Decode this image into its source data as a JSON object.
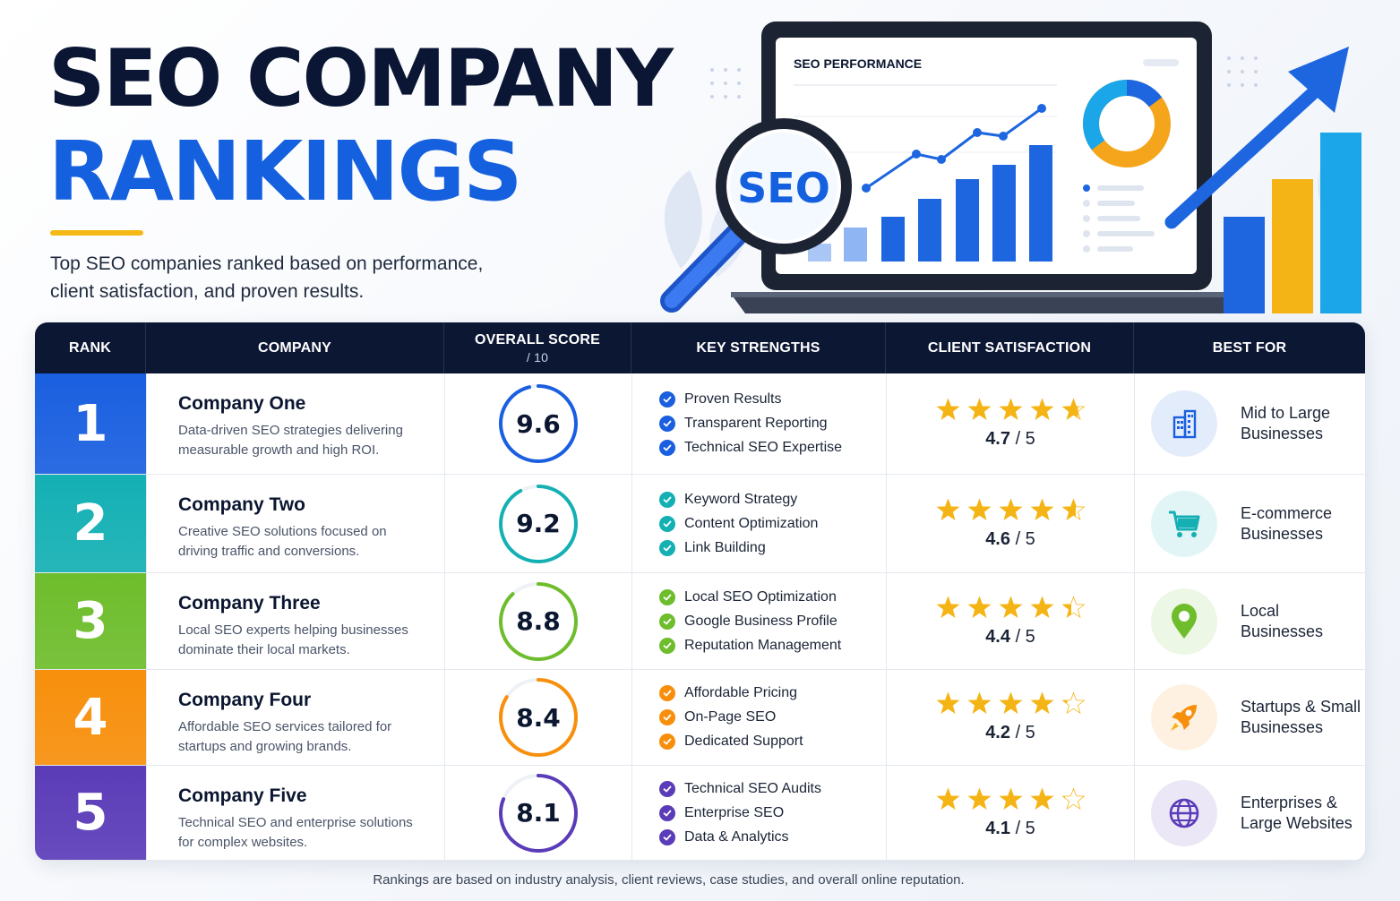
{
  "header": {
    "title_line1": "SEO COMPANY",
    "title_line2": "RANKINGS",
    "subtitle": "Top SEO companies ranked based on performance, client satisfaction, and proven results."
  },
  "illustration": {
    "laptop_heading": "SEO PERFORMANCE",
    "magnifier_text": "SEO"
  },
  "colors": {
    "navy": "#0c1734",
    "accent_blue": "#1460de",
    "gold": "#f5b915",
    "rank_colors": [
      "#1a5fe0",
      "#14b0b4",
      "#6ebd2c",
      "#f78f0c",
      "#5b3cb8"
    ]
  },
  "table": {
    "columns": {
      "rank": "RANK",
      "company": "COMPANY",
      "score": "OVERALL SCORE",
      "score_sub": "/ 10",
      "strengths": "KEY STRENGTHS",
      "satisfaction": "CLIENT SATISFACTION",
      "best_for": "BEST FOR"
    }
  },
  "chart_data": {
    "type": "table",
    "columns": [
      "RANK",
      "COMPANY",
      "OVERALL SCORE / 10",
      "KEY STRENGTHS",
      "CLIENT SATISFACTION",
      "BEST FOR"
    ],
    "rows": [
      {
        "rank": "1",
        "company": "Company One",
        "description": "Data-driven SEO strategies delivering measurable growth and high ROI.",
        "score": 9.6,
        "score_label": "9.6",
        "strengths": [
          "Proven Results",
          "Transparent Reporting",
          "Technical SEO Expertise"
        ],
        "rating": 4.7,
        "rating_label": "4.7",
        "rating_suffix": "/ 5",
        "best_for": "Mid to Large Businesses",
        "icon": "building-icon",
        "color": "#1a5fe0"
      },
      {
        "rank": "2",
        "company": "Company Two",
        "description": "Creative SEO solutions focused on driving traffic and conversions.",
        "score": 9.2,
        "score_label": "9.2",
        "strengths": [
          "Keyword Strategy",
          "Content Optimization",
          "Link Building"
        ],
        "rating": 4.6,
        "rating_label": "4.6",
        "rating_suffix": "/ 5",
        "best_for": "E-commerce Businesses",
        "icon": "shopping-cart-icon",
        "color": "#14b0b4"
      },
      {
        "rank": "3",
        "company": "Company Three",
        "description": "Local SEO experts helping businesses dominate their local markets.",
        "score": 8.8,
        "score_label": "8.8",
        "strengths": [
          "Local SEO Optimization",
          "Google Business Profile",
          "Reputation Management"
        ],
        "rating": 4.4,
        "rating_label": "4.4",
        "rating_suffix": "/ 5",
        "best_for": "Local Businesses",
        "icon": "map-pin-icon",
        "color": "#6ebd2c"
      },
      {
        "rank": "4",
        "company": "Company Four",
        "description": "Affordable SEO services tailored for startups and growing brands.",
        "score": 8.4,
        "score_label": "8.4",
        "strengths": [
          "Affordable Pricing",
          "On-Page SEO",
          "Dedicated Support"
        ],
        "rating": 4.2,
        "rating_label": "4.2",
        "rating_suffix": "/ 5",
        "best_for": "Startups & Small Businesses",
        "icon": "rocket-icon",
        "color": "#f78f0c"
      },
      {
        "rank": "5",
        "company": "Company Five",
        "description": "Technical SEO and enterprise solutions for complex websites.",
        "score": 8.1,
        "score_label": "8.1",
        "strengths": [
          "Technical SEO Audits",
          "Enterprise SEO",
          "Data & Analytics"
        ],
        "rating": 4.1,
        "rating_label": "4.1",
        "rating_suffix": "/ 5",
        "best_for": "Enterprises & Large Websites",
        "icon": "globe-icon",
        "color": "#5b3cb8"
      }
    ]
  },
  "footer": {
    "note": "Rankings are based on industry analysis, client reviews, case studies, and overall online reputation."
  }
}
